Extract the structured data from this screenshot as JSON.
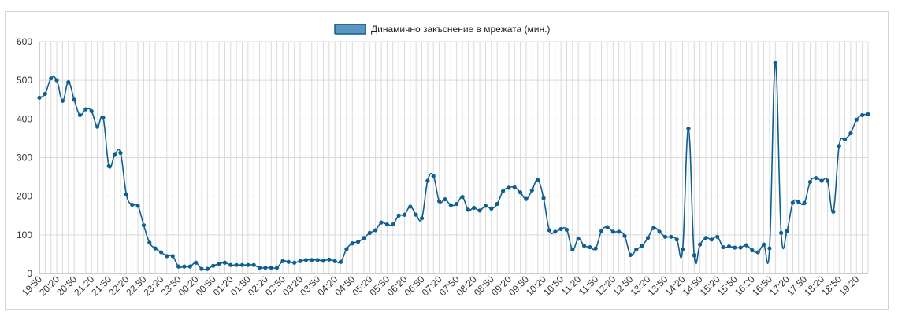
{
  "chart_data": {
    "type": "line",
    "legend": {
      "label": "Динамично закъснение в мрежата (мин.)",
      "placement": "top-center"
    },
    "colors": {
      "line": "#0e5f90",
      "legend_fill": "#5b95c0",
      "grid": "#d9d9d9"
    },
    "grid": true,
    "ylim": [
      0,
      600
    ],
    "yticks": [
      "0",
      "100",
      "200",
      "300",
      "400",
      "500",
      "600"
    ],
    "xticks": [
      "19:50",
      "20:20",
      "20:50",
      "21:20",
      "21:50",
      "22:20",
      "22:50",
      "23:20",
      "23:50",
      "00:20",
      "00:50",
      "01:20",
      "01:50",
      "02:20",
      "02:50",
      "03:20",
      "03:50",
      "04:20",
      "04:50",
      "05:20",
      "05:50",
      "06:20",
      "06:50",
      "07:20",
      "07:50",
      "08:20",
      "08:50",
      "09:20",
      "09:50",
      "10:20",
      "10:50",
      "11:20",
      "11:50",
      "12:20",
      "12:50",
      "13:20",
      "13:50",
      "14:20",
      "14:50",
      "15:20",
      "15:50",
      "16:20",
      "16:50",
      "17:20",
      "17:50",
      "18:20",
      "18:50",
      "19:20"
    ],
    "series": [
      {
        "name": "Динамично закъснение в мрежата (мин.)",
        "values": [
          455,
          465,
          505,
          500,
          447,
          495,
          450,
          410,
          425,
          420,
          380,
          403,
          278,
          307,
          312,
          205,
          178,
          175,
          125,
          80,
          65,
          55,
          45,
          45,
          18,
          18,
          18,
          28,
          12,
          12,
          20,
          25,
          28,
          22,
          22,
          22,
          22,
          22,
          15,
          15,
          15,
          15,
          32,
          30,
          28,
          32,
          35,
          35,
          35,
          33,
          36,
          32,
          30,
          63,
          78,
          82,
          92,
          105,
          112,
          132,
          127,
          127,
          150,
          152,
          173,
          152,
          143,
          240,
          252,
          187,
          192,
          177,
          180,
          198,
          165,
          170,
          163,
          175,
          168,
          180,
          213,
          222,
          223,
          210,
          193,
          215,
          242,
          195,
          112,
          108,
          115,
          113,
          62,
          90,
          72,
          68,
          65,
          110,
          120,
          108,
          108,
          97,
          48,
          62,
          72,
          92,
          118,
          108,
          95,
          95,
          88,
          62,
          375,
          47,
          75,
          92,
          88,
          95,
          68,
          70,
          67,
          67,
          73,
          60,
          55,
          75,
          65,
          545,
          105,
          110,
          183,
          185,
          182,
          237,
          247,
          240,
          240,
          160,
          330,
          347,
          363,
          398,
          410,
          412
        ]
      }
    ]
  }
}
